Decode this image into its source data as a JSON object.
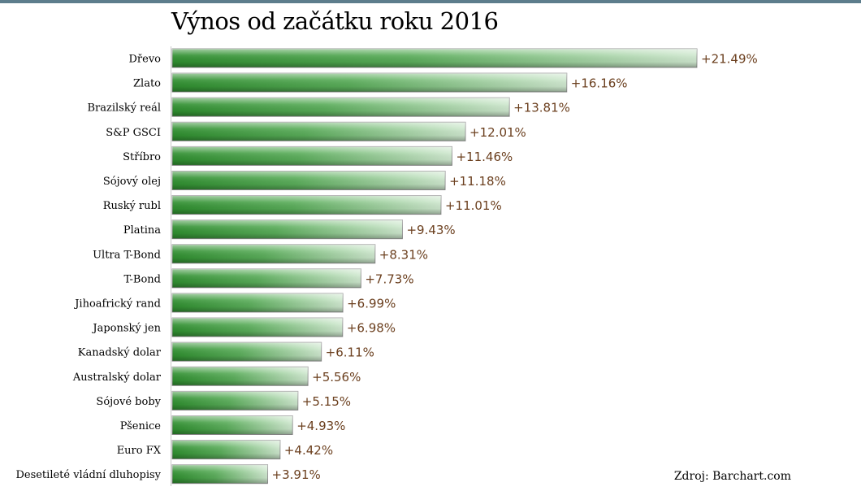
{
  "title": "Výnos od začátku roku 2016",
  "source": "Zdroj: Barchart.com",
  "colors": {
    "bar_dark": "#2e8b2e",
    "bar_light": "#d8ecd8",
    "value_text": "#6b3f1e",
    "label_text": "#000000"
  },
  "chart_data": {
    "type": "bar",
    "orientation": "horizontal",
    "title": "Výnos od začátku roku 2016",
    "categories": [
      "Dřevo",
      "Zlato",
      "Brazilský reál",
      "S&P GSCI",
      "Stříbro",
      "Sójový olej",
      "Ruský rubl",
      "Platina",
      "Ultra T-Bond",
      "T-Bond",
      "Jihoafrický rand",
      "Japonský jen",
      "Kanadský dolar",
      "Australský dolar",
      "Sójové boby",
      "Pšenice",
      "Euro FX",
      "Desetileté vládní dluhopisy"
    ],
    "values": [
      21.49,
      16.16,
      13.81,
      12.01,
      11.46,
      11.18,
      11.01,
      9.43,
      8.31,
      7.73,
      6.99,
      6.98,
      6.11,
      5.56,
      5.15,
      4.93,
      4.42,
      3.91
    ],
    "value_labels": [
      "+21.49%",
      "+16.16%",
      "+13.81%",
      "+12.01%",
      "+11.46%",
      "+11.18%",
      "+11.01%",
      "+9.43%",
      "+8.31%",
      "+7.73%",
      "+6.99%",
      "+6.98%",
      "+6.11%",
      "+5.56%",
      "+5.15%",
      "+4.93%",
      "+4.42%",
      "+3.91%"
    ],
    "xlim": [
      0,
      21.49
    ],
    "grid": false,
    "legend": "none"
  }
}
